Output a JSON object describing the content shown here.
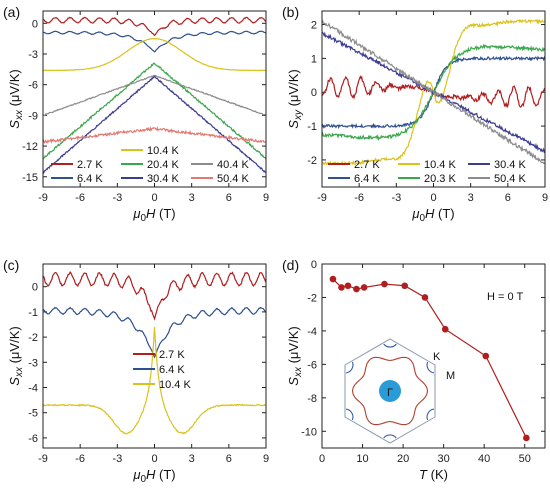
{
  "chart_data": [
    {
      "panel": "(a)",
      "type": "line",
      "xlabel": "μ0H (T)",
      "ylabel": "Sxx (μV/K)",
      "xlim": [
        -9,
        9
      ],
      "ylim": [
        -16,
        1.2
      ],
      "xticks": [
        -9,
        -6,
        -3,
        0,
        3,
        6,
        9
      ],
      "yticks": [
        0,
        -3,
        -6,
        -9,
        -12,
        -15
      ],
      "series": [
        {
          "name": "2.7 K",
          "color": "#b01e1e",
          "shape": "dip",
          "base": 0.3,
          "min": -1.2,
          "width": 0.9,
          "noise": 0.25
        },
        {
          "name": "6.4 K",
          "color": "#2f4f8f",
          "shape": "dip",
          "base": -0.9,
          "min": -2.8,
          "width": 1.4,
          "noise": 0.12
        },
        {
          "name": "10.4 K",
          "color": "#d9c21e",
          "shape": "peak",
          "base": -4.6,
          "edge": -4.7,
          "max": -1.5,
          "width": 2.2,
          "noise": 0.05
        },
        {
          "name": "20.4 K",
          "color": "#3aa64a",
          "shape": "linear",
          "edge": -13.2,
          "center": -3.9,
          "noise": 0.2
        },
        {
          "name": "30.4 K",
          "color": "#3b3b8f",
          "shape": "linear",
          "edge": -14.6,
          "center": -5.2,
          "noise": 0.15
        },
        {
          "name": "40.4 K",
          "color": "#8c8c8c",
          "shape": "linear",
          "edge": -9.0,
          "center": -5.1,
          "noise": 0.1
        },
        {
          "name": "50.4 K",
          "color": "#e07a70",
          "shape": "linear",
          "edge": -11.6,
          "center": -10.3,
          "noise": 0.25
        }
      ],
      "legend_rows": [
        [
          "10.4 K"
        ],
        [
          "2.7 K",
          "20.4 K",
          "40.4 K"
        ],
        [
          "6.4 K",
          "30.4 K",
          "50.4 K"
        ]
      ]
    },
    {
      "panel": "(b)",
      "type": "line",
      "xlabel": "μ0H (T)",
      "ylabel": "Sxy (μV/K)",
      "xlim": [
        -9,
        9
      ],
      "ylim": [
        -2.8,
        2.4
      ],
      "xticks": [
        -9,
        -6,
        -3,
        0,
        3,
        6,
        9
      ],
      "yticks": [
        2,
        1,
        0,
        -1,
        -2
      ],
      "series": [
        {
          "name": "2.7 K",
          "color": "#b01e1e",
          "shape": "odd_osc",
          "amp": 0.3,
          "sat": 0.3,
          "noise": 0.12
        },
        {
          "name": "6.4 K",
          "color": "#2f4f8f",
          "shape": "odd_sat",
          "amp": 1.0,
          "k": 0.9,
          "noise": 0.08
        },
        {
          "name": "10.4 K",
          "color": "#d9c21e",
          "shape": "odd_sat_rev",
          "amp": 2.1,
          "k": 0.45,
          "noise": 0.08
        },
        {
          "name": "20.3 K",
          "color": "#3aa64a",
          "shape": "odd_mid",
          "amp": 1.5,
          "k": 0.5,
          "noise": 0.1
        },
        {
          "name": "30.4 K",
          "color": "#3b3b8f",
          "shape": "odd_lin",
          "amp": -1.75,
          "noise": 0.1
        },
        {
          "name": "50.4 K",
          "color": "#8c8c8c",
          "shape": "odd_lin",
          "amp": -2.1,
          "noise": 0.12
        }
      ],
      "legend_rows": [
        [
          "2.7 K",
          "10.4 K",
          "30.4 K"
        ],
        [
          "6.4 K",
          "20.3 K",
          "50.4 K"
        ]
      ]
    },
    {
      "panel": "(c)",
      "type": "line",
      "xlabel": "μ0H (T)",
      "ylabel": "Sxx (μV/K)",
      "xlim": [
        -9,
        9
      ],
      "ylim": [
        -6.4,
        0.9
      ],
      "xticks": [
        -9,
        -6,
        -3,
        0,
        3,
        6,
        9
      ],
      "yticks": [
        0,
        -1,
        -2,
        -3,
        -4,
        -5,
        -6
      ],
      "series": [
        {
          "name": "2.7 K",
          "color": "#b01e1e",
          "shape": "dip",
          "base": 0.3,
          "min": -1.3,
          "width": 0.9,
          "noise": 0.25
        },
        {
          "name": "6.4 K",
          "color": "#2f4f8f",
          "shape": "dip",
          "base": -0.95,
          "min": -2.8,
          "width": 1.4,
          "noise": 0.12
        },
        {
          "name": "10.4 K",
          "color": "#d9c21e",
          "shape": "peak_dip",
          "base": -4.7,
          "max": -1.6,
          "low": -5.85,
          "noise": 0.05
        }
      ],
      "legend_rows": [
        [
          "2.7 K"
        ],
        [
          "6.4 K"
        ],
        [
          "10.4 K"
        ]
      ]
    },
    {
      "panel": "(d)",
      "type": "scatter",
      "xlabel": "T (K)",
      "ylabel": "Sxx (μV/K)",
      "xlim": [
        0,
        55
      ],
      "ylim": [
        -11,
        0
      ],
      "xticks": [
        0,
        10,
        20,
        30,
        40,
        50
      ],
      "yticks": [
        0,
        -2,
        -4,
        -6,
        -8,
        -10
      ],
      "color": "#b01e1e",
      "x": [
        2.7,
        4.8,
        6.4,
        8.5,
        10.4,
        15.4,
        20.4,
        25.4,
        30.4,
        40.4,
        50.4
      ],
      "y": [
        -0.9,
        -1.4,
        -1.3,
        -1.5,
        -1.4,
        -1.2,
        -1.3,
        -2.0,
        -3.9,
        -5.5,
        -10.4
      ],
      "annotation": "H = 0 T",
      "inset_labels": {
        "gamma": "Γ",
        "k": "K",
        "m": "M"
      }
    }
  ]
}
